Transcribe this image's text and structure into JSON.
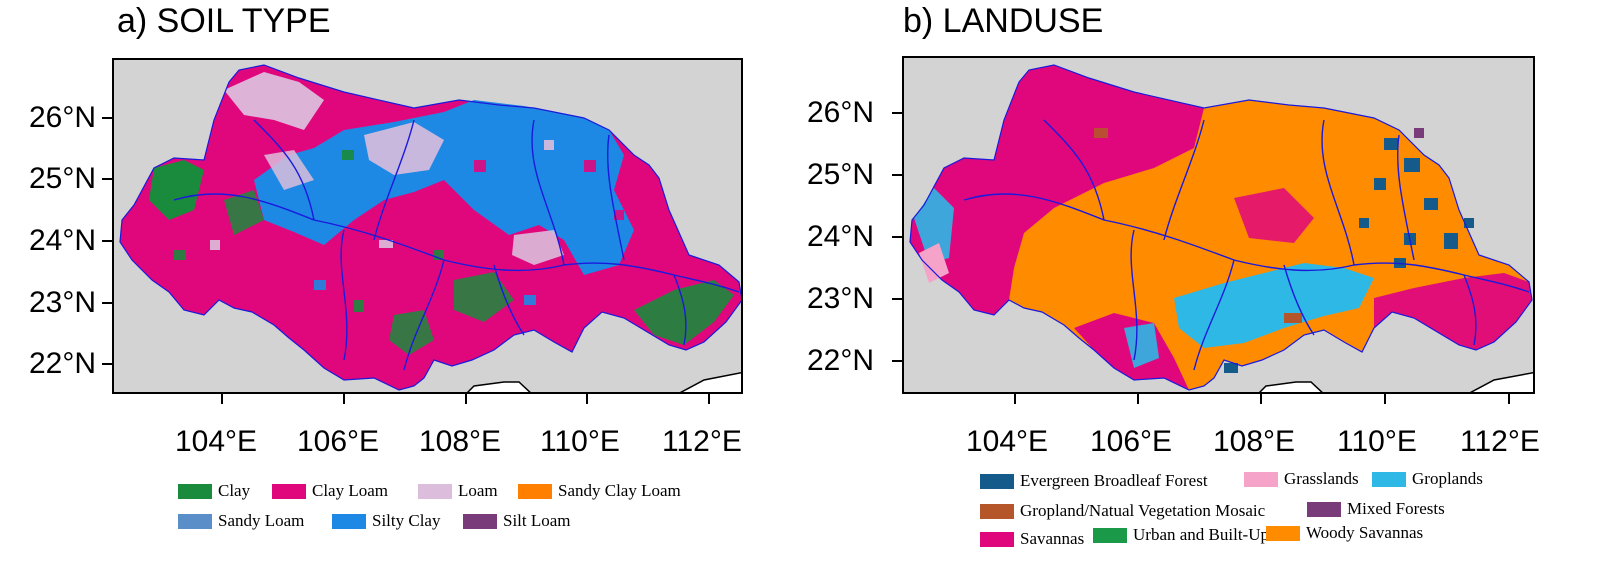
{
  "panels": [
    {
      "title": "a) SOIL TYPE",
      "lat_labels": [
        "26°N",
        "25°N",
        "24°N",
        "23°N",
        "22°N"
      ],
      "lon_labels": [
        "104°E",
        "106°E",
        "108°E",
        "110°E",
        "112°E"
      ],
      "legend": [
        {
          "label": "Clay",
          "color": "#1a8a3c"
        },
        {
          "label": "Clay Loam",
          "color": "#e0077d"
        },
        {
          "label": "Loam",
          "color": "#dcbedc"
        },
        {
          "label": "Sandy Clay Loam",
          "color": "#ff8000"
        },
        {
          "label": "Sandy Loam",
          "color": "#5a8ec8"
        },
        {
          "label": "Silty Clay",
          "color": "#1e88e5"
        },
        {
          "label": "Silt Loam",
          "color": "#7a3b7a"
        }
      ]
    },
    {
      "title": "b) LANDUSE",
      "lat_labels": [
        "26°N",
        "25°N",
        "24°N",
        "23°N",
        "22°N"
      ],
      "lon_labels": [
        "104°E",
        "106°E",
        "108°E",
        "110°E",
        "112°E"
      ],
      "legend": [
        {
          "label": "Evergreen Broadleaf Forest",
          "color": "#145a8a"
        },
        {
          "label": "Grasslands",
          "color": "#f5a3c8"
        },
        {
          "label": "Groplands",
          "color": "#2eb8e6"
        },
        {
          "label": "Gropland/Natual Vegetation Mosaic",
          "color": "#b5562a"
        },
        {
          "label": "Mixed Forests",
          "color": "#7a3b7a"
        },
        {
          "label": "Savannas",
          "color": "#e0077d"
        },
        {
          "label": "Urban and Built-Up",
          "color": "#1a9a48"
        },
        {
          "label": "Woody Savannas",
          "color": "#ff8c00"
        }
      ]
    }
  ],
  "colors": {
    "background": "#d3d3d3",
    "river": "#1a1adc",
    "frame": "#000000"
  }
}
